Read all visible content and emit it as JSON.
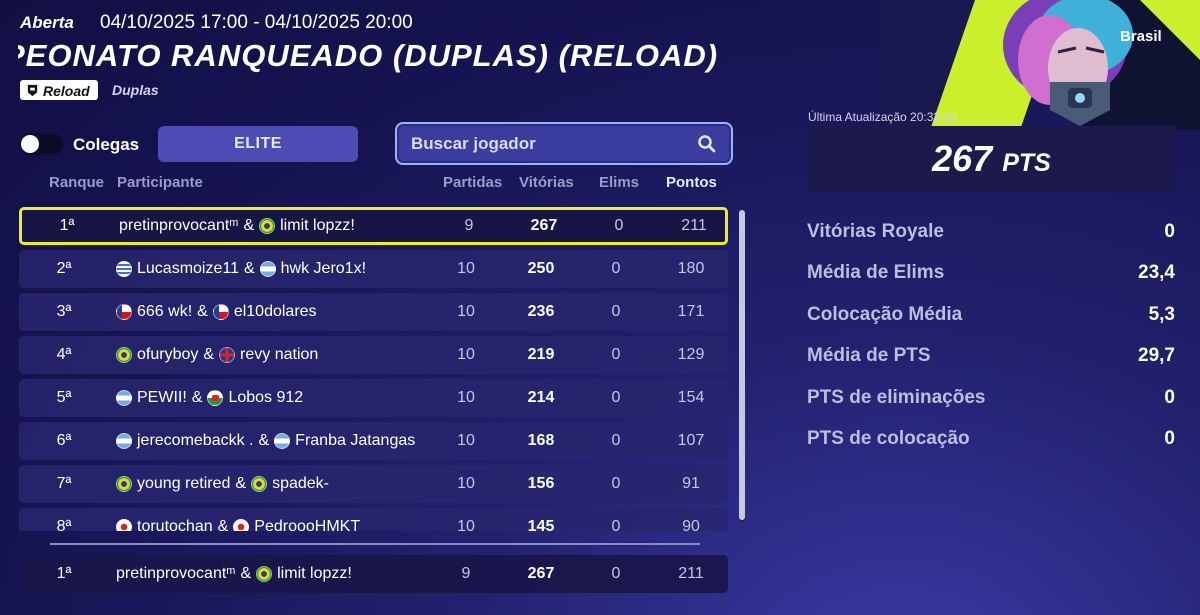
{
  "header": {
    "status": "Aberta",
    "dates": "04/10/2025 17:00 - 04/10/2025 20:00",
    "title": "PEONATO RANQUEADO (DUPLAS) (RELOAD)",
    "mode_badge": "Reload",
    "mode_sub": "Duplas"
  },
  "controls": {
    "toggle_label": "Colegas",
    "tab_label": "ELITE",
    "search_placeholder": "Buscar jogador"
  },
  "table": {
    "columns": {
      "rank": "Ranque",
      "participant": "Participante",
      "matches": "Partidas",
      "wins": "Vitórias",
      "elims": "Elims",
      "points": "Pontos"
    },
    "rows": [
      {
        "rank": "1ª",
        "p1": "pretinprovocantᵐ",
        "f1": "",
        "p2": "limit lopzz!",
        "f2": "br",
        "matches": "9",
        "wins": "267",
        "elims": "0",
        "points": "211"
      },
      {
        "rank": "2ª",
        "p1": "Lucasmoize11",
        "f1": "uy",
        "p2": "hwk Jero1x!",
        "f2": "ar",
        "matches": "10",
        "wins": "250",
        "elims": "0",
        "points": "180"
      },
      {
        "rank": "3ª",
        "p1": "666 wk!",
        "f1": "cz",
        "p2": "el10dolares",
        "f2": "cz",
        "matches": "10",
        "wins": "236",
        "elims": "0",
        "points": "171"
      },
      {
        "rank": "4ª",
        "p1": "ofuryboy",
        "f1": "br",
        "p2": "revy nation",
        "f2": "gb",
        "matches": "10",
        "wins": "219",
        "elims": "0",
        "points": "129"
      },
      {
        "rank": "5ª",
        "p1": "PEWII!",
        "f1": "ar",
        "p2": "Lobos 912",
        "f2": "wl",
        "matches": "10",
        "wins": "214",
        "elims": "0",
        "points": "154"
      },
      {
        "rank": "6ª",
        "p1": "jerecomebackk .",
        "f1": "ar",
        "p2": "Franba Jatangas",
        "f2": "ar",
        "matches": "10",
        "wins": "168",
        "elims": "0",
        "points": "107"
      },
      {
        "rank": "7ª",
        "p1": "young retired",
        "f1": "br",
        "p2": "spadek-",
        "f2": "br",
        "matches": "10",
        "wins": "156",
        "elims": "0",
        "points": "91"
      },
      {
        "rank": "8ª",
        "p1": "torutochan",
        "f1": "jp",
        "p2": "PedroooHMKT",
        "f2": "jp",
        "matches": "10",
        "wins": "145",
        "elims": "0",
        "points": "90"
      }
    ],
    "my_row": {
      "rank": "1ª",
      "p1": "pretinprovocantᵐ",
      "f1": "",
      "p2": "limit lopzz!",
      "f2": "br",
      "matches": "9",
      "wins": "267",
      "elims": "0",
      "points": "211"
    }
  },
  "panel": {
    "region": "Brasil",
    "last_update": "Última Atualização 20:33:38",
    "score": "267",
    "score_unit": "PTS",
    "stats": [
      {
        "label": "Vitórias Royale",
        "value": "0"
      },
      {
        "label": "Média de Elims",
        "value": "23,4"
      },
      {
        "label": "Colocação Média",
        "value": "5,3"
      },
      {
        "label": "Média de PTS",
        "value": "29,7"
      },
      {
        "label": "PTS de eliminações",
        "value": "0"
      },
      {
        "label": "PTS de colocação",
        "value": "0"
      }
    ]
  },
  "colors": {
    "highlight": "#eef01a",
    "accent": "#4c4cb4",
    "background": "#161451"
  }
}
